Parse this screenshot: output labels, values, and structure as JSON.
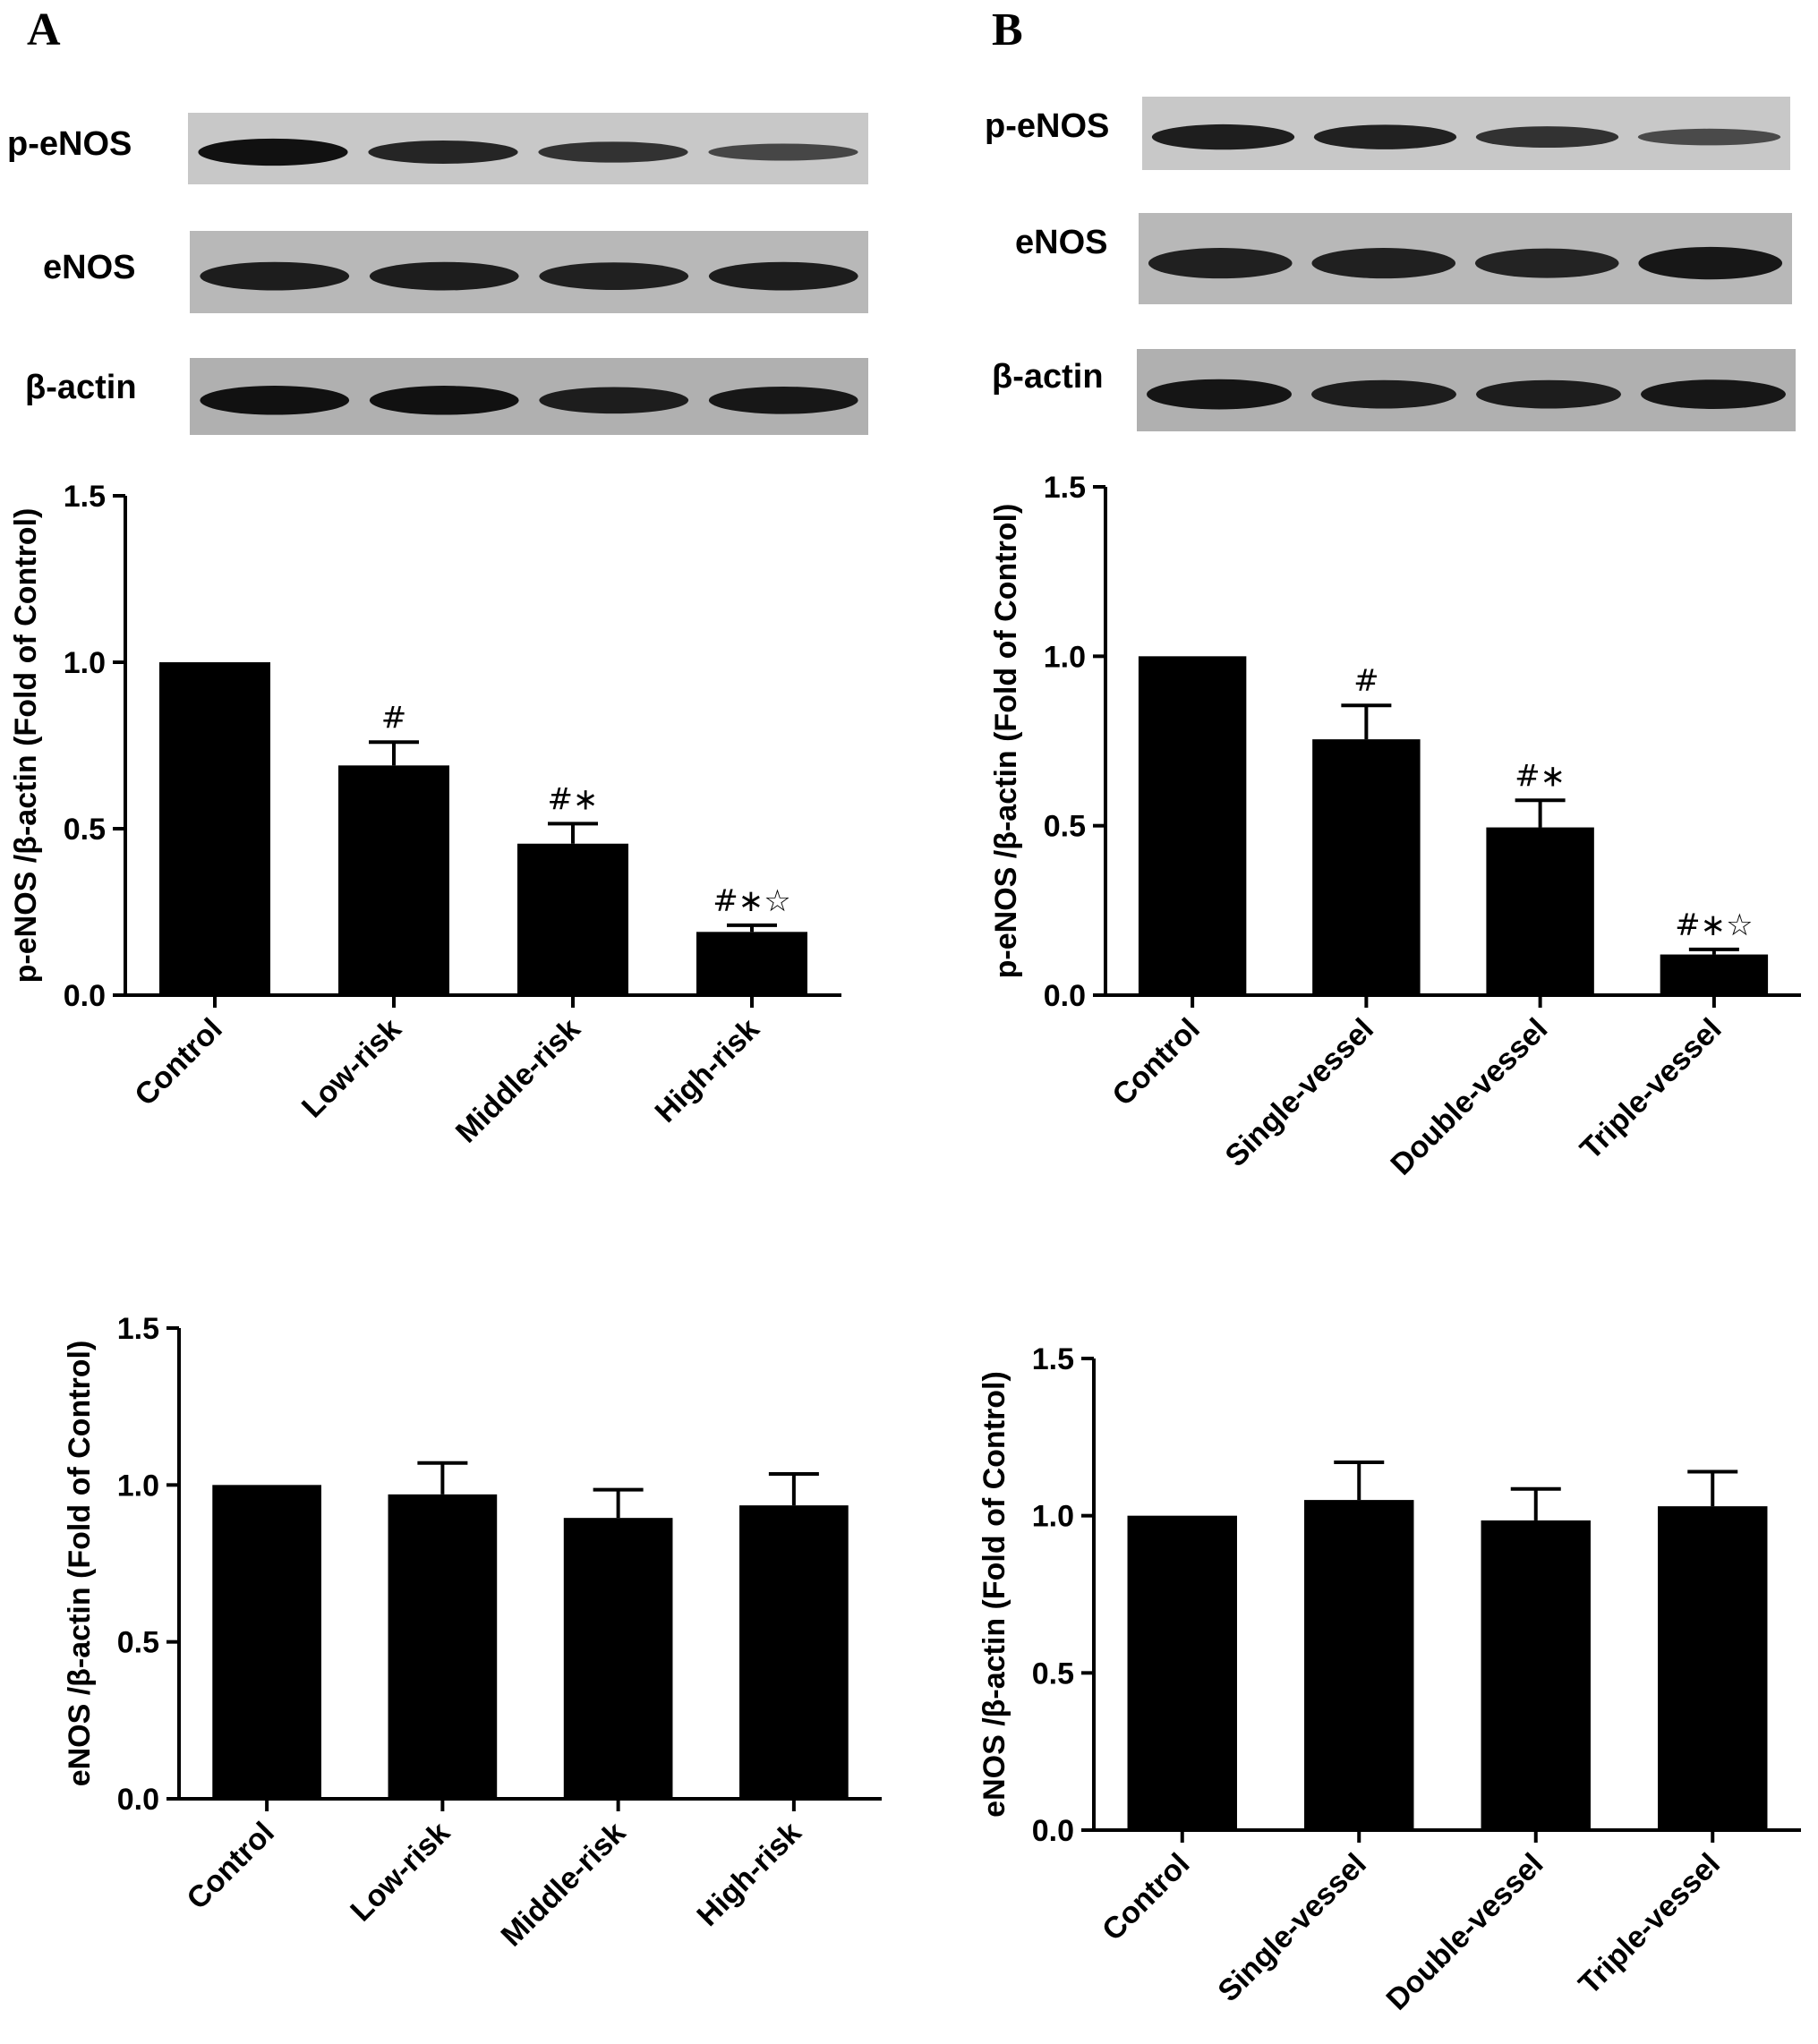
{
  "panels": [
    {
      "label": "A",
      "blots": [
        {
          "label": "p-eNOS",
          "intensities": [
            1.0,
            0.75,
            0.6,
            0.35
          ],
          "background": "#c8c8c8"
        },
        {
          "label": "eNOS",
          "intensities": [
            0.85,
            0.85,
            0.8,
            0.85
          ],
          "background": "#b8b8b8"
        },
        {
          "label": "β-actin",
          "intensities": [
            1.0,
            1.0,
            0.85,
            0.9
          ],
          "background": "#b0b0b0"
        }
      ]
    },
    {
      "label": "B",
      "blots": [
        {
          "label": "p-eNOS",
          "intensities": [
            0.85,
            0.8,
            0.6,
            0.3
          ],
          "background": "#c8c8c8"
        },
        {
          "label": "eNOS",
          "intensities": [
            0.8,
            0.8,
            0.75,
            0.9
          ],
          "background": "#b8b8b8"
        },
        {
          "label": "β-actin",
          "intensities": [
            0.95,
            0.85,
            0.85,
            0.9
          ],
          "background": "#b0b0b0"
        }
      ]
    }
  ],
  "chart_data": [
    {
      "type": "bar",
      "categories": [
        "Control",
        "Low-risk",
        "Middle-risk",
        "High-risk"
      ],
      "values": [
        1.0,
        0.69,
        0.455,
        0.19
      ],
      "errors": [
        0.0,
        0.07,
        0.06,
        0.02
      ],
      "significance": [
        "",
        "#",
        "#∗",
        "#∗☆"
      ],
      "ylabel": "p-eNOS /β-actin (Fold of Control)",
      "xlabel": "",
      "ylim": [
        0,
        1.5
      ],
      "yticks": [
        "0.0",
        "0.5",
        "1.0",
        "1.5"
      ],
      "bar_color": "#000000"
    },
    {
      "type": "bar",
      "categories": [
        "Control",
        "Single-vessel",
        "Double-vessel",
        "Triple-vessel"
      ],
      "values": [
        1.0,
        0.755,
        0.495,
        0.12
      ],
      "errors": [
        0.0,
        0.1,
        0.08,
        0.015
      ],
      "significance": [
        "",
        "#",
        "#∗",
        "#∗☆"
      ],
      "ylabel": "p-eNOS /β-actin (Fold of Control)",
      "xlabel": "",
      "ylim": [
        0,
        1.5
      ],
      "yticks": [
        "0.0",
        "0.5",
        "1.0",
        "1.5"
      ],
      "bar_color": "#000000"
    },
    {
      "type": "bar",
      "categories": [
        "Control",
        "Low-risk",
        "Middle-risk",
        "High-risk"
      ],
      "values": [
        1.0,
        0.97,
        0.895,
        0.935
      ],
      "errors": [
        0.0,
        0.1,
        0.09,
        0.1
      ],
      "significance": [
        "",
        "",
        "",
        ""
      ],
      "ylabel": "eNOS /β-actin (Fold of Control)",
      "xlabel": "",
      "ylim": [
        0,
        1.5
      ],
      "yticks": [
        "0.0",
        "0.5",
        "1.0",
        "1.5"
      ],
      "bar_color": "#000000"
    },
    {
      "type": "bar",
      "categories": [
        "Control",
        "Single-vessel",
        "Double-vessel",
        "Triple-vessel"
      ],
      "values": [
        1.0,
        1.05,
        0.985,
        1.03
      ],
      "errors": [
        0.0,
        0.12,
        0.1,
        0.11
      ],
      "significance": [
        "",
        "",
        "",
        ""
      ],
      "ylabel": "eNOS /β-actin (Fold of Control)",
      "xlabel": "",
      "ylim": [
        0,
        1.5
      ],
      "yticks": [
        "0.0",
        "0.5",
        "1.0",
        "1.5"
      ],
      "bar_color": "#000000"
    }
  ]
}
